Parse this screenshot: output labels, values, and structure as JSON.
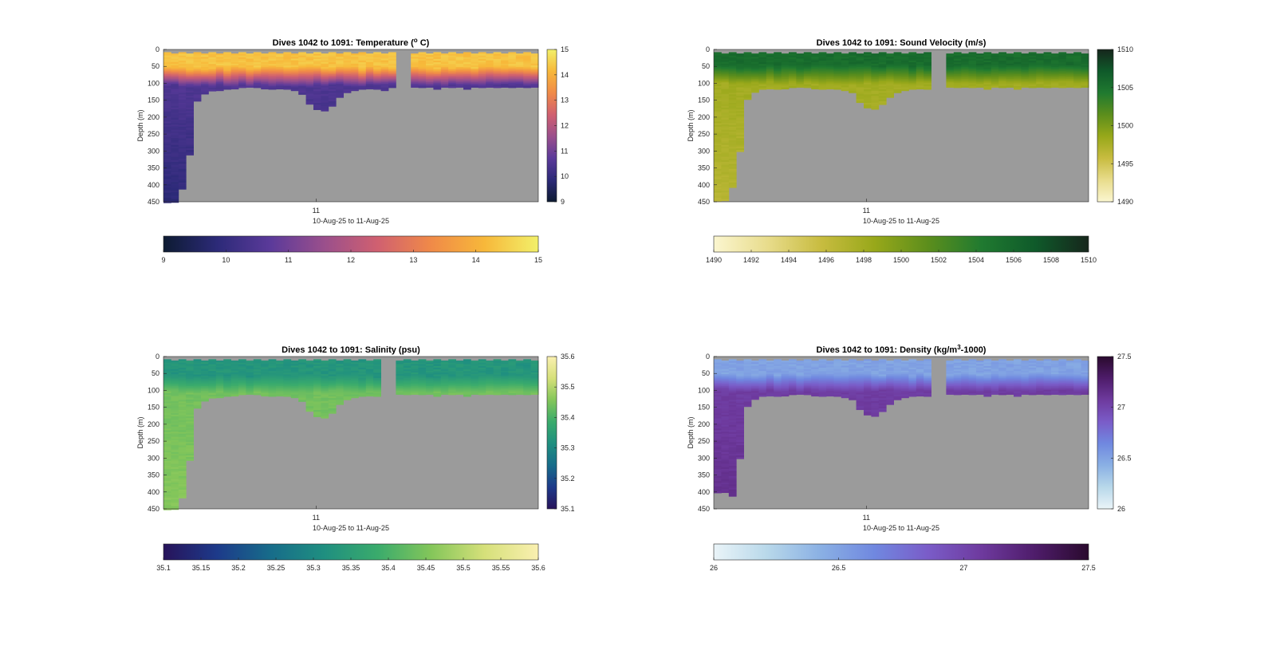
{
  "chart_data": [
    {
      "type": "heatmap",
      "title": "Dives 1042 to 1091: Temperature (",
      "title_sup": "o",
      "title_post": " C)",
      "ylabel": "Depth (m)",
      "xlabel": "10-Aug-25 to 11-Aug-25",
      "x_tick_labels": [
        "11"
      ],
      "y_ticks": [
        0,
        50,
        100,
        150,
        200,
        250,
        300,
        350,
        400,
        450
      ],
      "ylim": [
        0,
        450
      ],
      "y_reversed": true,
      "colormap": [
        "#0d1b32",
        "#2c2a78",
        "#5b3a9a",
        "#9a4f8c",
        "#d06070",
        "#f08a48",
        "#f7b83a",
        "#f2f06a"
      ],
      "color_range": [
        9,
        15
      ],
      "side_colorbar_ticks": [
        "15",
        "14",
        "13",
        "12",
        "11",
        "10",
        "9"
      ],
      "bottom_colorbar_ticks": [
        "9",
        "10",
        "11",
        "12",
        "13",
        "14",
        "15"
      ],
      "missing_color": "#9b9b9b",
      "dives": 50,
      "bottom_depth_per_dive_m": [
        450,
        450,
        410,
        310,
        150,
        130,
        120,
        118,
        116,
        115,
        112,
        112,
        113,
        114,
        116,
        115,
        118,
        122,
        130,
        160,
        175,
        180,
        165,
        140,
        128,
        120,
        118,
        117,
        116,
        118,
        112,
        112,
        110,
        112,
        112,
        110,
        114,
        112,
        110,
        112,
        115,
        112,
        110,
        112,
        113,
        112,
        110,
        110,
        112,
        112
      ],
      "gap_dives": [
        31,
        32
      ],
      "surface_value": 14.3,
      "mixed_layer_depth_m": 50,
      "thermocline_bottom_m": 105,
      "deep_value": 10.5
    },
    {
      "type": "heatmap",
      "title": "Dives 1042 to 1091: Sound Velocity (m/s)",
      "ylabel": "Depth (m)",
      "xlabel": "10-Aug-25 to 11-Aug-25",
      "x_tick_labels": [
        "11"
      ],
      "y_ticks": [
        0,
        50,
        100,
        150,
        200,
        250,
        300,
        350,
        400,
        450
      ],
      "ylim": [
        0,
        450
      ],
      "y_reversed": true,
      "colormap": [
        "#fbf6d0",
        "#e8dc8c",
        "#c8bc40",
        "#98a81a",
        "#5c8e1c",
        "#207a30",
        "#0f5a2a",
        "#16261c"
      ],
      "color_range": [
        1490,
        1510
      ],
      "side_colorbar_ticks": [
        "1510",
        "1505",
        "1500",
        "1495",
        "1490"
      ],
      "bottom_colorbar_ticks": [
        "1490",
        "1492",
        "1494",
        "1496",
        "1498",
        "1500",
        "1502",
        "1504",
        "1506",
        "1508",
        "1510"
      ],
      "missing_color": "#9b9b9b",
      "dives": 50,
      "bottom_depth_per_dive_m": [
        445,
        445,
        408,
        300,
        145,
        125,
        118,
        116,
        115,
        114,
        112,
        112,
        113,
        114,
        116,
        115,
        118,
        120,
        128,
        155,
        170,
        175,
        160,
        140,
        125,
        120,
        118,
        117,
        116,
        118,
        112,
        112,
        110,
        112,
        112,
        110,
        114,
        112,
        110,
        112,
        115,
        112,
        110,
        112,
        113,
        112,
        110,
        110,
        112,
        112
      ],
      "gap_dives": [
        29,
        30
      ],
      "surface_value": 1505.5,
      "mixed_layer_depth_m": 45,
      "thermocline_bottom_m": 100,
      "deep_value": 1498.0
    },
    {
      "type": "heatmap",
      "title": "Dives 1042 to 1091: Salinity (psu)",
      "ylabel": "Depth (m)",
      "xlabel": "10-Aug-25 to 11-Aug-25",
      "x_tick_labels": [
        "11"
      ],
      "y_ticks": [
        0,
        50,
        100,
        150,
        200,
        250,
        300,
        350,
        400,
        450
      ],
      "ylim": [
        0,
        450
      ],
      "y_reversed": true,
      "colormap": [
        "#27135a",
        "#1d3a8a",
        "#176c8a",
        "#1f8f80",
        "#3aab6c",
        "#84c65a",
        "#d6e07a",
        "#faf0b0"
      ],
      "color_range": [
        35.1,
        35.6
      ],
      "side_colorbar_ticks": [
        "35.6",
        "35.5",
        "35.4",
        "35.3",
        "35.2",
        "35.1"
      ],
      "bottom_colorbar_ticks": [
        "35.1",
        "35.15",
        "35.2",
        "35.25",
        "35.3",
        "35.35",
        "35.4",
        "35.45",
        "35.5",
        "35.55",
        "35.6"
      ],
      "missing_color": "#9b9b9b",
      "dives": 50,
      "bottom_depth_per_dive_m": [
        450,
        450,
        415,
        305,
        150,
        128,
        120,
        118,
        116,
        115,
        112,
        112,
        113,
        114,
        116,
        115,
        118,
        122,
        130,
        160,
        175,
        180,
        165,
        140,
        128,
        120,
        118,
        117,
        116,
        118,
        112,
        112,
        110,
        112,
        112,
        110,
        114,
        112,
        110,
        112,
        115,
        112,
        110,
        112,
        113,
        112,
        110,
        110,
        112,
        112
      ],
      "gap_dives": [
        29,
        30
      ],
      "surface_value": 35.33,
      "mixed_layer_depth_m": 55,
      "thermocline_bottom_m": 105,
      "deep_value": 35.44
    },
    {
      "type": "heatmap",
      "title": "Dives 1042 to 1091: Density (kg/m",
      "title_sup": "3",
      "title_post": "-1000)",
      "ylabel": "Depth (m)",
      "xlabel": "10-Aug-25 to 11-Aug-25",
      "x_tick_labels": [
        "11"
      ],
      "y_ticks": [
        0,
        50,
        100,
        150,
        200,
        250,
        300,
        350,
        400,
        450
      ],
      "ylim": [
        0,
        450
      ],
      "y_reversed": true,
      "colormap": [
        "#eaf4f8",
        "#b8d8ea",
        "#8ab0e4",
        "#7088e0",
        "#7a5cc8",
        "#6e3a9e",
        "#4e1c6a",
        "#2a0a2e"
      ],
      "color_range": [
        26,
        27.5
      ],
      "side_colorbar_ticks": [
        "27.5",
        "27",
        "26.5",
        "26"
      ],
      "bottom_colorbar_ticks": [
        "26",
        "26.5",
        "27",
        "27.5"
      ],
      "missing_color": "#9b9b9b",
      "dives": 50,
      "bottom_depth_per_dive_m": [
        400,
        400,
        410,
        300,
        145,
        125,
        118,
        116,
        115,
        114,
        112,
        112,
        113,
        114,
        116,
        115,
        118,
        120,
        128,
        155,
        170,
        175,
        160,
        140,
        125,
        120,
        118,
        117,
        116,
        118,
        112,
        112,
        110,
        112,
        112,
        110,
        114,
        112,
        110,
        112,
        115,
        112,
        110,
        112,
        113,
        112,
        110,
        110,
        112,
        112
      ],
      "gap_dives": [
        29,
        30
      ],
      "surface_value": 26.5,
      "mixed_layer_depth_m": 50,
      "thermocline_bottom_m": 100,
      "deep_value": 27.05
    }
  ]
}
